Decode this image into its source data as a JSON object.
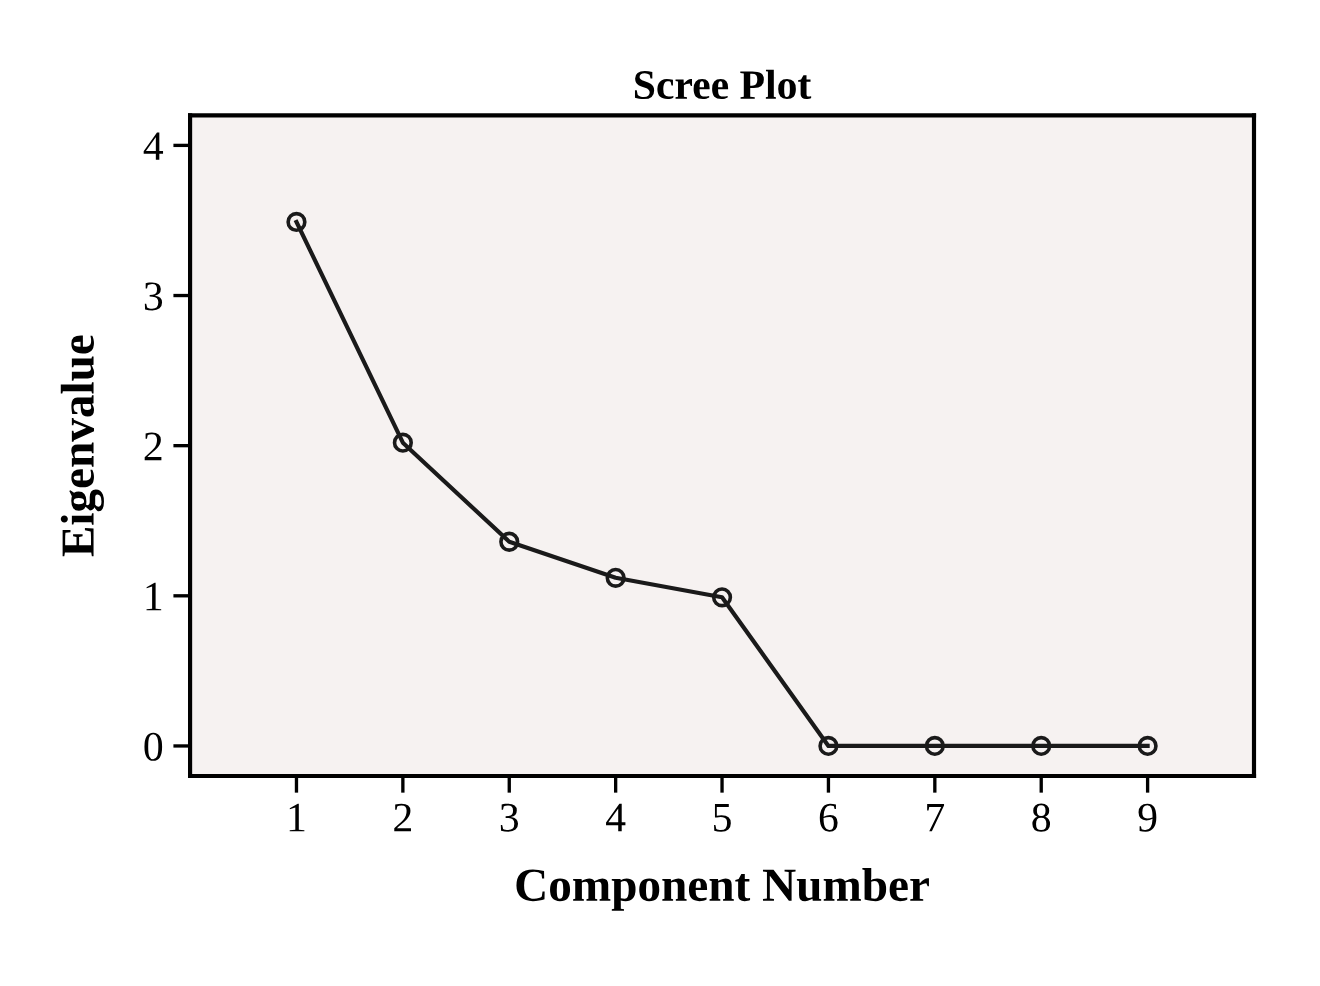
{
  "chart_data": {
    "type": "line",
    "title": "Scree Plot",
    "xlabel": "Component Number",
    "ylabel": "Eigenvalue",
    "x": [
      1,
      2,
      3,
      4,
      5,
      6,
      7,
      8,
      9
    ],
    "series": [
      {
        "color": "#1a1a1a",
        "values": [
          3.49,
          2.02,
          1.36,
          1.12,
          0.99,
          0,
          0,
          0,
          0
        ]
      }
    ],
    "xlim": [
      0,
      10
    ],
    "xticks": [
      1,
      2,
      3,
      4,
      5,
      6,
      7,
      8,
      9
    ],
    "ylim": [
      -0.2,
      4.2
    ],
    "yticks": [
      0,
      1,
      2,
      3,
      4
    ],
    "marker": "circle",
    "line_style": "solid",
    "grid": false
  }
}
